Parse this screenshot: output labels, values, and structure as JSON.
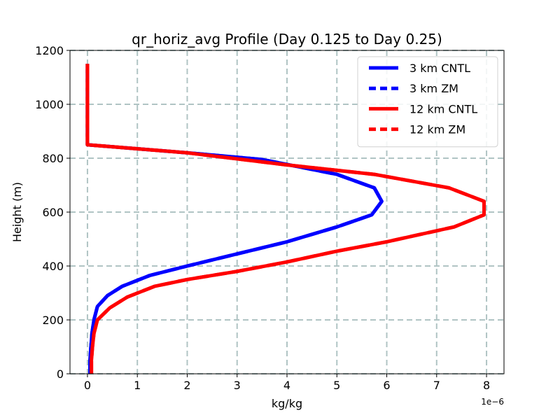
{
  "chart_data": {
    "type": "line",
    "title": "qr_horiz_avg Profile (Day 0.125 to Day 0.25)",
    "xlabel": "kg/kg",
    "ylabel": "Height (m)",
    "x_offset_label": "1e−6",
    "xlim": [
      -0.35,
      8.35
    ],
    "ylim": [
      0,
      1200
    ],
    "xticks": [
      0,
      1,
      2,
      3,
      4,
      5,
      6,
      7,
      8
    ],
    "xtick_labels": [
      "0",
      "1",
      "2",
      "3",
      "4",
      "5",
      "6",
      "7",
      "8"
    ],
    "yticks": [
      0,
      200,
      400,
      600,
      800,
      1000,
      1200
    ],
    "ytick_labels": [
      "0",
      "200",
      "400",
      "600",
      "800",
      "1000",
      "1200"
    ],
    "grid": true,
    "legend_position": "top-right",
    "series": [
      {
        "name": "3 km CNTL",
        "color": "#0000ff",
        "style": "solid",
        "points": [
          [
            0.05,
            0
          ],
          [
            0.05,
            50
          ],
          [
            0.07,
            100
          ],
          [
            0.09,
            150
          ],
          [
            0.13,
            200
          ],
          [
            0.2,
            250
          ],
          [
            0.4,
            290
          ],
          [
            0.7,
            325
          ],
          [
            1.25,
            365
          ],
          [
            2.0,
            400
          ],
          [
            3.0,
            445
          ],
          [
            4.0,
            490
          ],
          [
            5.0,
            545
          ],
          [
            5.7,
            590
          ],
          [
            5.9,
            640
          ],
          [
            5.75,
            690
          ],
          [
            5.0,
            740
          ],
          [
            3.5,
            795
          ],
          [
            2.0,
            820
          ],
          [
            0.0,
            850
          ],
          [
            0.0,
            900
          ],
          [
            0.0,
            1000
          ],
          [
            0.0,
            1150
          ]
        ]
      },
      {
        "name": "3 km ZM",
        "color": "#0000ff",
        "style": "dashed",
        "points": [
          [
            0.05,
            0
          ],
          [
            0.05,
            50
          ],
          [
            0.07,
            100
          ],
          [
            0.09,
            150
          ],
          [
            0.13,
            200
          ],
          [
            0.2,
            250
          ],
          [
            0.4,
            290
          ],
          [
            0.7,
            325
          ],
          [
            1.25,
            365
          ],
          [
            2.0,
            400
          ],
          [
            3.0,
            445
          ],
          [
            4.0,
            490
          ],
          [
            5.0,
            545
          ],
          [
            5.7,
            590
          ],
          [
            5.9,
            640
          ],
          [
            5.75,
            690
          ],
          [
            5.0,
            740
          ],
          [
            3.5,
            795
          ],
          [
            2.0,
            820
          ],
          [
            0.0,
            850
          ],
          [
            0.0,
            900
          ],
          [
            0.0,
            1000
          ],
          [
            0.0,
            1150
          ]
        ]
      },
      {
        "name": "12 km CNTL",
        "color": "#ff0000",
        "style": "solid",
        "points": [
          [
            0.08,
            0
          ],
          [
            0.08,
            50
          ],
          [
            0.1,
            100
          ],
          [
            0.13,
            150
          ],
          [
            0.2,
            200
          ],
          [
            0.45,
            245
          ],
          [
            0.8,
            285
          ],
          [
            1.35,
            325
          ],
          [
            2.0,
            350
          ],
          [
            3.0,
            380
          ],
          [
            4.0,
            415
          ],
          [
            5.0,
            455
          ],
          [
            6.0,
            490
          ],
          [
            7.35,
            545
          ],
          [
            7.95,
            590
          ],
          [
            7.95,
            640
          ],
          [
            7.25,
            690
          ],
          [
            5.75,
            740
          ],
          [
            4.0,
            775
          ],
          [
            2.0,
            820
          ],
          [
            0.0,
            850
          ],
          [
            0.0,
            900
          ],
          [
            0.0,
            1000
          ],
          [
            0.0,
            1150
          ]
        ]
      },
      {
        "name": "12 km ZM",
        "color": "#ff0000",
        "style": "dashed",
        "points": [
          [
            0.08,
            0
          ],
          [
            0.08,
            50
          ],
          [
            0.1,
            100
          ],
          [
            0.13,
            150
          ],
          [
            0.2,
            200
          ],
          [
            0.45,
            245
          ],
          [
            0.8,
            285
          ],
          [
            1.35,
            325
          ],
          [
            2.0,
            350
          ],
          [
            3.0,
            380
          ],
          [
            4.0,
            415
          ],
          [
            5.0,
            455
          ],
          [
            6.0,
            490
          ],
          [
            7.35,
            545
          ],
          [
            7.95,
            590
          ],
          [
            7.95,
            640
          ],
          [
            7.25,
            690
          ],
          [
            5.75,
            740
          ],
          [
            4.0,
            775
          ],
          [
            2.0,
            820
          ],
          [
            0.0,
            850
          ],
          [
            0.0,
            900
          ],
          [
            0.0,
            1000
          ],
          [
            0.0,
            1150
          ]
        ]
      }
    ]
  }
}
